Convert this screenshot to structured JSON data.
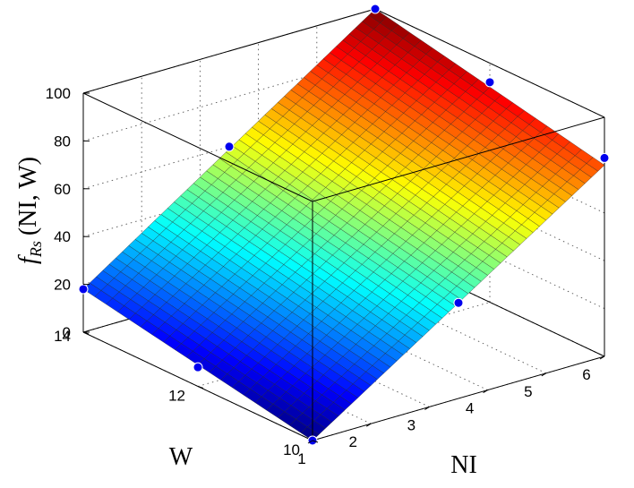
{
  "chart_data": {
    "type": "surface3d",
    "zlabel": "f_Rs (NI, W)",
    "zlabel_main": "f",
    "zlabel_sub": "Rs",
    "zlabel_args": "(NI, W)",
    "xlabel": "NI",
    "ylabel": "W",
    "xlim": [
      1,
      6
    ],
    "ylim": [
      10,
      14
    ],
    "zlim": [
      0,
      100
    ],
    "x_ticks": [
      "1",
      "2",
      "3",
      "4",
      "5",
      "6"
    ],
    "y_ticks": [
      "10",
      "12",
      "14"
    ],
    "z_ticks": [
      "0",
      "20",
      "40",
      "60",
      "80",
      "100"
    ],
    "colormap": "jet",
    "surface_corners": [
      {
        "x": 1,
        "y": 10,
        "z": 0
      },
      {
        "x": 6,
        "y": 10,
        "z": 80
      },
      {
        "x": 1,
        "y": 14,
        "z": 18
      },
      {
        "x": 6,
        "y": 14,
        "z": 100
      }
    ],
    "points": [
      {
        "x": 1,
        "y": 10,
        "z": 0
      },
      {
        "x": 1,
        "y": 12,
        "z": 8
      },
      {
        "x": 1,
        "y": 14,
        "z": 18
      },
      {
        "x": 3.5,
        "y": 10,
        "z": 40
      },
      {
        "x": 3.5,
        "y": 14,
        "z": 60
      },
      {
        "x": 6,
        "y": 10,
        "z": 83
      },
      {
        "x": 6,
        "y": 12,
        "z": 92
      },
      {
        "x": 6,
        "y": 14,
        "z": 100
      }
    ],
    "point_color": "#0000ee",
    "grid": true
  }
}
